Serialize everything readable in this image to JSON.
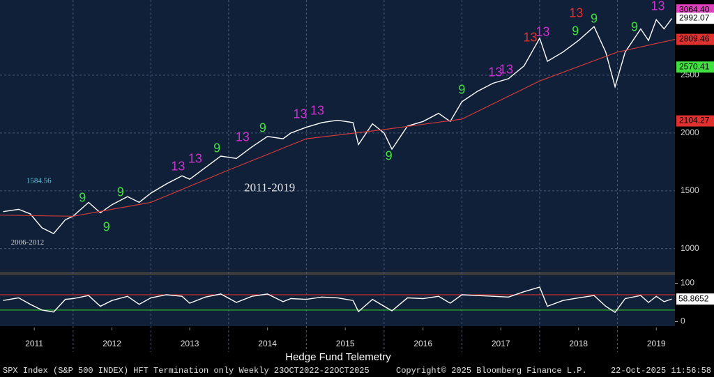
{
  "chart_data": [
    {
      "type": "line",
      "title": "Hedge Fund Telemetry",
      "annotations": [
        {
          "text": "1584.56",
          "x": 2011.4,
          "y": 1584.56,
          "color": "#5fc8e0"
        },
        {
          "text": "2011-2019",
          "x": 2014.2,
          "y": 1520,
          "color": "#e0e0e0"
        },
        {
          "text": "2006-2012",
          "x": 2011.2,
          "y": 1050,
          "color": "#d0d0d0"
        }
      ],
      "footer": {
        "left": "SPX Index (S&P 500 INDEX) HFT Termination only Weekly 23OCT2022-22OCT2025",
        "center": "Copyright© 2025 Bloomberg Finance L.P.",
        "right": "22-Oct-2025 11:56:58"
      },
      "xlim": [
        2011.06,
        2019.74
      ],
      "xticks": [
        {
          "value": 2011.5,
          "label": "2011"
        },
        {
          "value": 2012.5,
          "label": "2012"
        },
        {
          "value": 2013.5,
          "label": "2013"
        },
        {
          "value": 2014.5,
          "label": "2014"
        },
        {
          "value": 2015.5,
          "label": "2015"
        },
        {
          "value": 2016.5,
          "label": "2016"
        },
        {
          "value": 2017.5,
          "label": "2017"
        },
        {
          "value": 2018.5,
          "label": "2018"
        },
        {
          "value": 2019.5,
          "label": "2019"
        }
      ],
      "ylim": [
        800,
        3150
      ],
      "yticks": [
        1000,
        1500,
        2000,
        2500
      ],
      "grid": true,
      "series": [
        {
          "color": "#ffffff",
          "x": [
            2011.1,
            2011.3,
            2011.45,
            2011.6,
            2011.75,
            2011.9,
            2012.0,
            2012.2,
            2012.35,
            2012.5,
            2012.7,
            2012.85,
            2013.0,
            2013.2,
            2013.4,
            2013.5,
            2013.7,
            2013.9,
            2014.1,
            2014.3,
            2014.5,
            2014.7,
            2014.8,
            2015.0,
            2015.2,
            2015.4,
            2015.6,
            2015.67,
            2015.85,
            2016.0,
            2016.1,
            2016.3,
            2016.5,
            2016.7,
            2016.85,
            2017.0,
            2017.2,
            2017.4,
            2017.6,
            2017.8,
            2018.0,
            2018.1,
            2018.3,
            2018.5,
            2018.7,
            2018.85,
            2018.97,
            2019.1,
            2019.3,
            2019.4,
            2019.5,
            2019.6,
            2019.7
          ],
          "values": [
            1320,
            1340,
            1300,
            1180,
            1130,
            1250,
            1280,
            1400,
            1310,
            1380,
            1450,
            1400,
            1480,
            1560,
            1630,
            1600,
            1700,
            1800,
            1780,
            1880,
            1970,
            1950,
            2000,
            2050,
            2090,
            2110,
            2090,
            1900,
            2080,
            2000,
            1860,
            2060,
            2100,
            2170,
            2100,
            2270,
            2360,
            2430,
            2470,
            2580,
            2820,
            2620,
            2700,
            2800,
            2920,
            2700,
            2400,
            2700,
            2900,
            2800,
            2980,
            2900,
            2990
          ]
        },
        {
          "color": "#d03a3a",
          "x": [
            2011.06,
            2012.0,
            2013.0,
            2014.0,
            2015.0,
            2016.0,
            2017.0,
            2018.0,
            2019.0,
            2019.74
          ],
          "values": [
            1290,
            1280,
            1400,
            1680,
            1950,
            2030,
            2120,
            2450,
            2700,
            2809.46
          ]
        }
      ],
      "price_labels": [
        {
          "value": 3064.4,
          "label": "3064.40",
          "color": "#e040c0"
        },
        {
          "value": 2992.07,
          "color": "#ffffff"
        },
        {
          "value": 2809.46,
          "color": "#e03030"
        },
        {
          "value": 2570.41,
          "color": "#40e040"
        },
        {
          "value": 2104.27,
          "color": "#e03030"
        }
      ],
      "markers": [
        {
          "label": "9",
          "x": 2012.12,
          "y": 1434,
          "color": "#3ee03e"
        },
        {
          "label": "9",
          "x": 2012.61,
          "y": 1482,
          "color": "#3ee03e"
        },
        {
          "label": "9",
          "x": 2012.43,
          "y": 1181,
          "color": "#3ee03e"
        },
        {
          "label": "13",
          "x": 2013.35,
          "y": 1705,
          "color": "#d030d0"
        },
        {
          "label": "13",
          "x": 2013.57,
          "y": 1771,
          "color": "#d030d0"
        },
        {
          "label": "9",
          "x": 2013.85,
          "y": 1861,
          "color": "#3ee03e"
        },
        {
          "label": "13",
          "x": 2014.18,
          "y": 1958,
          "color": "#d030d0"
        },
        {
          "label": "9",
          "x": 2014.44,
          "y": 2036,
          "color": "#3ee03e"
        },
        {
          "label": "13",
          "x": 2014.92,
          "y": 2157,
          "color": "#d030d0"
        },
        {
          "label": "13",
          "x": 2015.14,
          "y": 2187,
          "color": "#d030d0"
        },
        {
          "label": "9",
          "x": 2016.06,
          "y": 1795,
          "color": "#3ee03e"
        },
        {
          "label": "9",
          "x": 2017.0,
          "y": 2367,
          "color": "#3ee03e"
        },
        {
          "label": "13",
          "x": 2017.43,
          "y": 2518,
          "color": "#d030d0"
        },
        {
          "label": "13",
          "x": 2017.57,
          "y": 2542,
          "color": "#d030d0"
        },
        {
          "label": "13",
          "x": 2017.88,
          "y": 2819,
          "color": "#e03030"
        },
        {
          "label": "13",
          "x": 2018.04,
          "y": 2867,
          "color": "#d030d0"
        },
        {
          "label": "9",
          "x": 2018.46,
          "y": 2873,
          "color": "#3ee03e"
        },
        {
          "label": "13",
          "x": 2018.47,
          "y": 3030,
          "color": "#e03030"
        },
        {
          "label": "9",
          "x": 2018.7,
          "y": 2982,
          "color": "#3ee03e"
        },
        {
          "label": "9",
          "x": 2019.22,
          "y": 2910,
          "color": "#3ee03e"
        },
        {
          "label": "13",
          "x": 2019.52,
          "y": 3090,
          "color": "#d030d0"
        }
      ]
    },
    {
      "type": "line",
      "xlim": [
        2011.06,
        2019.74
      ],
      "ylim": [
        -12,
        121
      ],
      "yticks": [
        0,
        100
      ],
      "reference_lines": [
        {
          "value": 70,
          "color": "#c03030"
        },
        {
          "value": 30,
          "color": "#30c030"
        }
      ],
      "series": [
        {
          "color": "#ffffff",
          "x": [
            2011.1,
            2011.3,
            2011.45,
            2011.6,
            2011.75,
            2011.9,
            2012.0,
            2012.2,
            2012.35,
            2012.5,
            2012.7,
            2012.85,
            2013.0,
            2013.2,
            2013.4,
            2013.5,
            2013.7,
            2013.9,
            2014.1,
            2014.3,
            2014.5,
            2014.7,
            2014.8,
            2015.0,
            2015.2,
            2015.4,
            2015.6,
            2015.67,
            2015.85,
            2016.0,
            2016.1,
            2016.3,
            2016.5,
            2016.7,
            2016.85,
            2017.0,
            2017.2,
            2017.4,
            2017.6,
            2017.8,
            2018.0,
            2018.1,
            2018.3,
            2018.5,
            2018.7,
            2018.85,
            2018.97,
            2019.1,
            2019.3,
            2019.4,
            2019.5,
            2019.6,
            2019.7
          ],
          "values": [
            55,
            62,
            45,
            30,
            25,
            58,
            60,
            68,
            40,
            55,
            66,
            45,
            62,
            70,
            66,
            48,
            64,
            72,
            50,
            66,
            72,
            52,
            60,
            58,
            64,
            62,
            55,
            26,
            58,
            40,
            28,
            62,
            60,
            66,
            48,
            70,
            68,
            66,
            64,
            78,
            90,
            40,
            55,
            62,
            68,
            40,
            24,
            60,
            68,
            50,
            66,
            52,
            58.8652
          ]
        }
      ],
      "last_value": 58.8652
    }
  ]
}
